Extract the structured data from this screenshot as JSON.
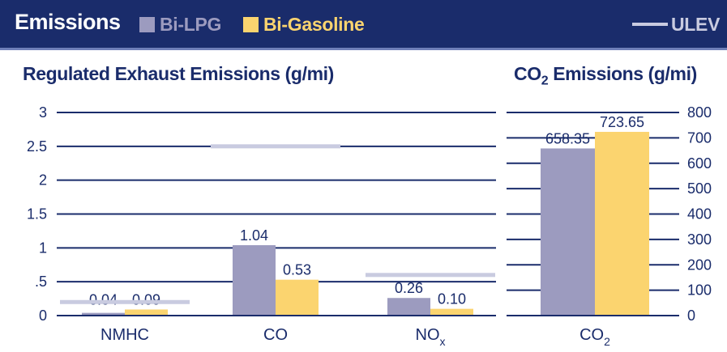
{
  "header": {
    "title": "Emissions",
    "legend": {
      "lpg_label": "Bi-LPG",
      "gasoline_label": "Bi-Gasoline",
      "ulev_label": "ULEV"
    }
  },
  "colors": {
    "header_bg": "#1a2c6b",
    "lpg": "#9c9bbf",
    "gasoline": "#fbd46f",
    "ulev": "#c9cbe0",
    "gasoline_text": "#fbd46f"
  },
  "chart_data": [
    {
      "type": "bar",
      "title": "Regulated Exhaust Emissions (g/mi)",
      "categories": [
        "NMHC",
        "CO",
        "NOx"
      ],
      "category_subscripts": [
        "",
        "",
        "x"
      ],
      "series": [
        {
          "name": "Bi-LPG",
          "values": [
            0.04,
            1.04,
            0.26
          ],
          "labels": [
            "0.04",
            "1.04",
            "0.26"
          ]
        },
        {
          "name": "Bi-Gasoline",
          "values": [
            0.09,
            0.53,
            0.1
          ],
          "labels": [
            "0.09",
            "0.53",
            "0.10"
          ]
        }
      ],
      "reference": {
        "name": "ULEV",
        "values": [
          0.2,
          2.5,
          0.6
        ]
      },
      "ylim": [
        0,
        3
      ],
      "yticks": [
        0,
        0.5,
        1,
        1.5,
        2,
        2.5,
        3
      ],
      "ytick_labels": [
        "0",
        ".5",
        "1",
        "1.5",
        "2",
        "2.5",
        "3"
      ],
      "grid": true
    },
    {
      "type": "bar",
      "title": "CO2 Emissions (g/mi)",
      "categories": [
        "CO2"
      ],
      "series": [
        {
          "name": "Bi-LPG",
          "values": [
            658.35
          ],
          "labels": [
            "658.35"
          ]
        },
        {
          "name": "Bi-Gasoline",
          "values": [
            723.65
          ],
          "labels": [
            "723.65"
          ]
        }
      ],
      "ylim": [
        0,
        800
      ],
      "yticks": [
        0,
        100,
        200,
        300,
        400,
        500,
        600,
        700,
        800
      ],
      "ytick_labels": [
        "0",
        "100",
        "200",
        "300",
        "400",
        "500",
        "600",
        "700",
        "800"
      ],
      "grid": true
    }
  ]
}
